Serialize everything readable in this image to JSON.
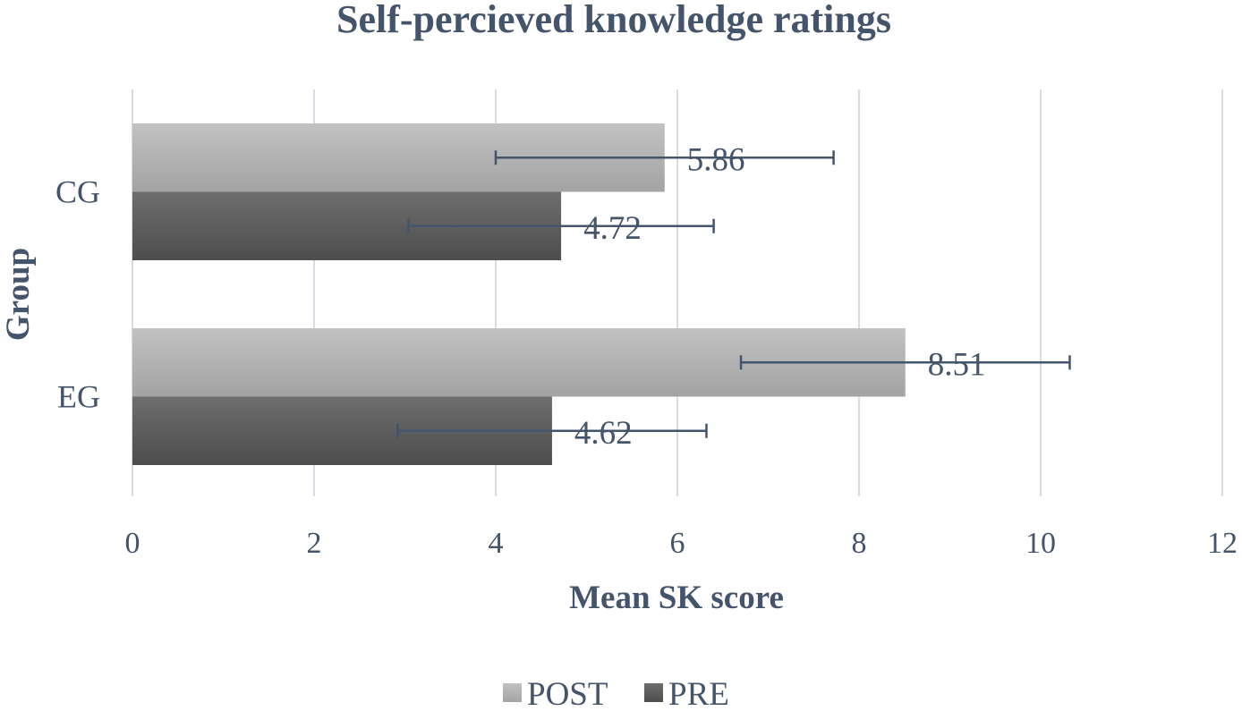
{
  "chart_data": {
    "type": "bar",
    "orientation": "horizontal",
    "title": "Self-percieved knowledge ratings",
    "xlabel": "Mean SK score",
    "ylabel": "Group",
    "xlim": [
      0,
      12
    ],
    "xticks": [
      "0",
      "2",
      "4",
      "6",
      "8",
      "10",
      "12"
    ],
    "categories": [
      "CG",
      "EG"
    ],
    "series": [
      {
        "name": "POST",
        "values": [
          5.86,
          8.51
        ],
        "labels": [
          "5.86",
          "8.51"
        ],
        "error": [
          1.86,
          1.81
        ],
        "color": "#a6a6a6"
      },
      {
        "name": "PRE",
        "values": [
          4.72,
          4.62
        ],
        "labels": [
          "4.72",
          "4.62"
        ],
        "error": [
          1.68,
          1.7
        ],
        "color": "#595959"
      }
    ],
    "grid": true,
    "legend": "bottom",
    "text_color": "#44546a"
  }
}
